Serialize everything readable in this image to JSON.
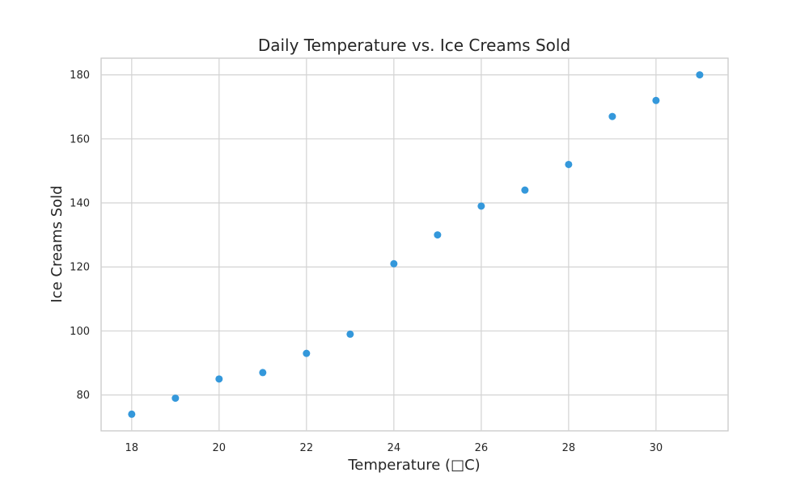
{
  "chart_data": {
    "type": "scatter",
    "title": "Daily Temperature vs. Ice Creams Sold",
    "xlabel": "Temperature (□C)",
    "ylabel": "Ice Creams Sold",
    "x": [
      18,
      19,
      20,
      21,
      22,
      23,
      24,
      25,
      26,
      27,
      28,
      29,
      30,
      31
    ],
    "y": [
      74,
      79,
      85,
      87,
      93,
      99,
      121,
      130,
      139,
      144,
      152,
      167,
      172,
      180
    ],
    "xlim": [
      17.3,
      31.65
    ],
    "ylim": [
      68.8,
      185.2
    ],
    "xticks": [
      18,
      20,
      22,
      24,
      26,
      28,
      30
    ],
    "yticks": [
      80,
      100,
      120,
      140,
      160,
      180
    ],
    "grid": true,
    "marker_color": "#3498db"
  }
}
